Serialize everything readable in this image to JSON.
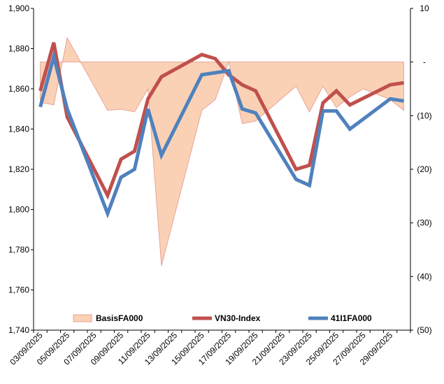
{
  "chart_data": {
    "type": "line",
    "x": [
      "03/09/2025",
      "04/09/2025",
      "05/09/2025",
      "06/09/2025",
      "07/09/2025",
      "08/09/2025",
      "09/09/2025",
      "10/09/2025",
      "11/09/2025",
      "12/09/2025",
      "13/09/2025",
      "14/09/2025",
      "15/09/2025",
      "16/09/2025",
      "17/09/2025",
      "18/09/2025",
      "19/09/2025",
      "20/09/2025",
      "21/09/2025",
      "22/09/2025",
      "23/09/2025",
      "24/09/2025",
      "25/09/2025",
      "26/09/2025",
      "27/09/2025",
      "28/09/2025",
      "29/09/2025",
      "30/09/2025"
    ],
    "x_tick_labels": [
      "03/09/2025",
      "05/09/2025",
      "07/09/2025",
      "09/09/2025",
      "11/09/2025",
      "13/09/2025",
      "15/09/2025",
      "17/09/2025",
      "19/09/2025",
      "21/09/2025",
      "23/09/2025",
      "25/09/2025",
      "27/09/2025",
      "29/09/2025"
    ],
    "y_left": {
      "ylim": [
        1740,
        1900
      ],
      "ticks": [
        "1,740",
        "1,760",
        "1,780",
        "1,800",
        "1,820",
        "1,840",
        "1,860",
        "1,880",
        "1,900"
      ]
    },
    "y_right": {
      "ylim": [
        -50,
        10
      ],
      "ticks": [
        "10",
        "-",
        "(10)",
        "(20)",
        "(30)",
        "(40)",
        "(50)"
      ]
    },
    "series": [
      {
        "name": "BasisFA000",
        "kind": "area",
        "axis": "right",
        "color": "#FAD1B5",
        "edge_color": "#E8A398",
        "points": [
          [
            "03/09/2025",
            -7.5
          ],
          [
            "04/09/2025",
            -8
          ],
          [
            "05/09/2025",
            4.5
          ],
          [
            "06/09/2025",
            0
          ],
          [
            "08/09/2025",
            -9
          ],
          [
            "09/09/2025",
            -8.8
          ],
          [
            "10/09/2025",
            -9.3
          ],
          [
            "11/09/2025",
            -5
          ],
          [
            "12/09/2025",
            -38
          ],
          [
            "15/09/2025",
            -9
          ],
          [
            "16/09/2025",
            -7
          ],
          [
            "17/09/2025",
            0
          ],
          [
            "18/09/2025",
            -11.5
          ],
          [
            "19/09/2025",
            -11
          ],
          [
            "22/09/2025",
            -4.5
          ],
          [
            "23/09/2025",
            -9.3
          ],
          [
            "24/09/2025",
            -4.5
          ],
          [
            "25/09/2025",
            -8.5
          ],
          [
            "26/09/2025",
            -6.5
          ],
          [
            "27/09/2025",
            -5
          ],
          [
            "29/09/2025",
            -7
          ],
          [
            "30/09/2025",
            -9
          ]
        ]
      },
      {
        "name": "VN30-Index",
        "kind": "line",
        "axis": "left",
        "color": "#C0504D",
        "points": [
          [
            "03/09/2025",
            1859
          ],
          [
            "04/09/2025",
            1883
          ],
          [
            "05/09/2025",
            1846
          ],
          [
            "08/09/2025",
            1807
          ],
          [
            "09/09/2025",
            1825
          ],
          [
            "10/09/2025",
            1829
          ],
          [
            "11/09/2025",
            1855
          ],
          [
            "12/09/2025",
            1866
          ],
          [
            "15/09/2025",
            1877
          ],
          [
            "16/09/2025",
            1875
          ],
          [
            "17/09/2025",
            1867
          ],
          [
            "18/09/2025",
            1862
          ],
          [
            "19/09/2025",
            1859
          ],
          [
            "22/09/2025",
            1820
          ],
          [
            "23/09/2025",
            1822
          ],
          [
            "24/09/2025",
            1853
          ],
          [
            "25/09/2025",
            1859
          ],
          [
            "26/09/2025",
            1852
          ],
          [
            "29/09/2025",
            1862
          ],
          [
            "30/09/2025",
            1863
          ]
        ]
      },
      {
        "name": "41I1FA000",
        "kind": "line",
        "axis": "left",
        "color": "#4F81BD",
        "points": [
          [
            "03/09/2025",
            1851
          ],
          [
            "04/09/2025",
            1876
          ],
          [
            "05/09/2025",
            1850
          ],
          [
            "08/09/2025",
            1798
          ],
          [
            "09/09/2025",
            1816
          ],
          [
            "10/09/2025",
            1820
          ],
          [
            "11/09/2025",
            1850
          ],
          [
            "12/09/2025",
            1827
          ],
          [
            "15/09/2025",
            1867
          ],
          [
            "16/09/2025",
            1868
          ],
          [
            "17/09/2025",
            1869
          ],
          [
            "18/09/2025",
            1850
          ],
          [
            "19/09/2025",
            1848
          ],
          [
            "22/09/2025",
            1815
          ],
          [
            "23/09/2025",
            1812
          ],
          [
            "24/09/2025",
            1849
          ],
          [
            "25/09/2025",
            1849
          ],
          [
            "26/09/2025",
            1840
          ],
          [
            "29/09/2025",
            1855
          ],
          [
            "30/09/2025",
            1854
          ]
        ]
      }
    ],
    "legend": {
      "placement": "bottom-inside",
      "entries": [
        "BasisFA000",
        "VN30-Index",
        "41I1FA000"
      ]
    },
    "grid": false
  }
}
